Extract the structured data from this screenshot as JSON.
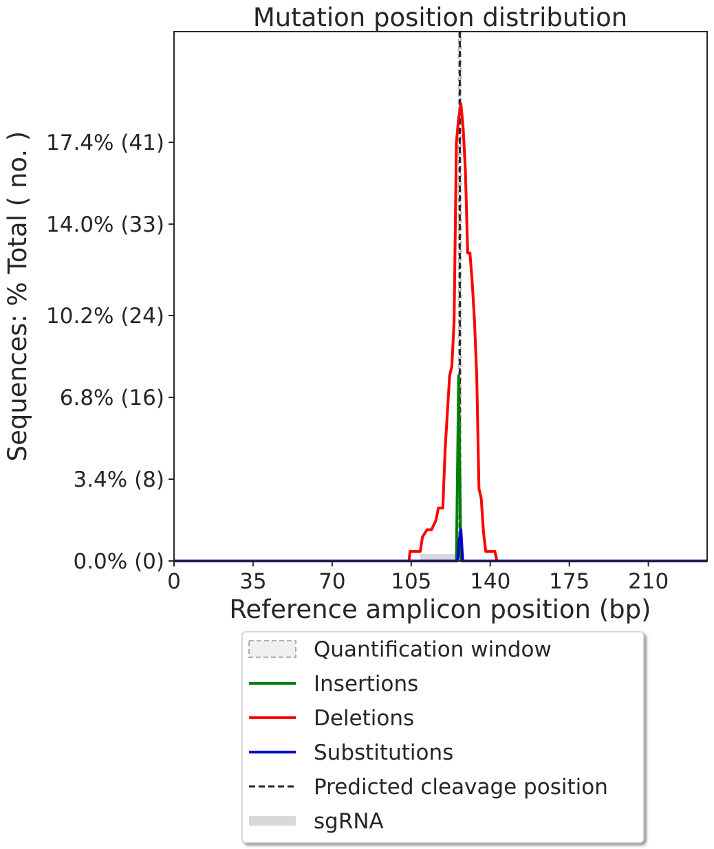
{
  "chart_data": {
    "type": "line",
    "title": "Mutation position distribution",
    "xlabel": "Reference amplicon position (bp)",
    "ylabel": "Sequences: % Total ( no. )",
    "xlim": [
      0,
      236
    ],
    "ylim": [
      0,
      22.0
    ],
    "x_ticks": [
      0,
      35,
      70,
      105,
      140,
      175,
      210
    ],
    "x_tick_labels": [
      "0",
      "35",
      "70",
      "105",
      "140",
      "175",
      "210"
    ],
    "y_ticks": [
      0.0,
      3.4,
      6.8,
      10.2,
      14.0,
      17.4
    ],
    "y_tick_labels": [
      "0.0% (0)",
      "3.4% (8)",
      "6.8% (16)",
      "10.2% (24)",
      "14.0% (33)",
      "17.4% (41)"
    ],
    "quantification_window": [
      126,
      127
    ],
    "sgRNA": [
      109,
      126
    ],
    "cleavage_position": 126.5,
    "grid": false,
    "legend_placement": "below",
    "series": [
      {
        "name": "Deletions",
        "color": "#ff0000",
        "points": [
          [
            0,
            0
          ],
          [
            104,
            0
          ],
          [
            104.5,
            0.4
          ],
          [
            109,
            0.4
          ],
          [
            110,
            1.0
          ],
          [
            112,
            1.3
          ],
          [
            114,
            1.3
          ],
          [
            116,
            1.7
          ],
          [
            117,
            2.2
          ],
          [
            119,
            2.2
          ],
          [
            120,
            4.6
          ],
          [
            122,
            7.7
          ],
          [
            123,
            8.1
          ],
          [
            124,
            10.0
          ],
          [
            125,
            17.4
          ],
          [
            126,
            18.4
          ],
          [
            127,
            19.0
          ],
          [
            128,
            18.0
          ],
          [
            129,
            16.2
          ],
          [
            130,
            12.8
          ],
          [
            131,
            12.8
          ],
          [
            132,
            11.6
          ],
          [
            133,
            10.0
          ],
          [
            134,
            7.7
          ],
          [
            135,
            3.0
          ],
          [
            136,
            2.6
          ],
          [
            137,
            1.2
          ],
          [
            138,
            0.4
          ],
          [
            142,
            0.4
          ],
          [
            143,
            0
          ],
          [
            236,
            0
          ]
        ]
      },
      {
        "name": "Insertions",
        "color": "#008000",
        "points": [
          [
            0,
            0
          ],
          [
            125,
            0
          ],
          [
            126,
            7.7
          ],
          [
            127,
            0
          ],
          [
            236,
            0
          ]
        ]
      },
      {
        "name": "Substitutions",
        "color": "#0000cd",
        "points": [
          [
            0,
            0
          ],
          [
            125.5,
            0
          ],
          [
            126.3,
            0.9
          ],
          [
            127,
            1.3
          ],
          [
            127.8,
            0
          ],
          [
            236,
            0
          ]
        ]
      }
    ],
    "legend": [
      {
        "label": "Quantification window",
        "kind": "window"
      },
      {
        "label": "Insertions",
        "kind": "line",
        "color": "#008000"
      },
      {
        "label": "Deletions",
        "kind": "line",
        "color": "#ff0000"
      },
      {
        "label": "Substitutions",
        "kind": "line",
        "color": "#0000cd"
      },
      {
        "label": "Predicted cleavage position",
        "kind": "dashed",
        "color": "#262626"
      },
      {
        "label": "sgRNA",
        "kind": "band",
        "color": "#d9d9d9"
      }
    ]
  }
}
